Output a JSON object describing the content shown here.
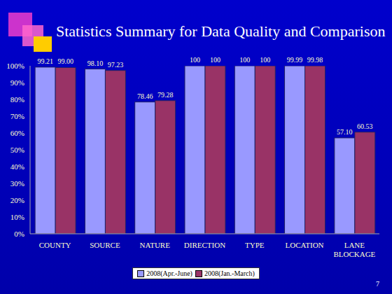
{
  "chart_data": {
    "type": "bar",
    "title": "Statistics Summary for Data Quality and Comparison",
    "categories": [
      "COUNTY",
      "SOURCE",
      "NATURE",
      "DIRECTION",
      "TYPE",
      "LOCATION",
      "LANE BLOCKAGE"
    ],
    "series": [
      {
        "name": "2008(Apr.-June)",
        "color": "#9999ff",
        "values": [
          99.21,
          98.1,
          78.46,
          100,
          100,
          99.99,
          57.1
        ],
        "value_labels": [
          "99.21",
          "98.10",
          "78.46",
          "100",
          "100",
          "99.99",
          "57.10"
        ]
      },
      {
        "name": "2008(Jan.-March)",
        "color": "#993366",
        "values": [
          99.0,
          97.23,
          79.28,
          100,
          100,
          99.98,
          60.53
        ],
        "value_labels": [
          "99.00",
          "97.23",
          "79.28",
          "100",
          "100",
          "99.98",
          "60.53"
        ]
      }
    ],
    "ylim": [
      0,
      100
    ],
    "yticks": [
      {
        "value": 0,
        "label": "0%"
      },
      {
        "value": 10,
        "label": "10%"
      },
      {
        "value": 20,
        "label": "20%"
      },
      {
        "value": 30,
        "label": "30%"
      },
      {
        "value": 40,
        "label": "40%"
      },
      {
        "value": 50,
        "label": "50%"
      },
      {
        "value": 60,
        "label": "60%"
      },
      {
        "value": 70,
        "label": "70%"
      },
      {
        "value": 80,
        "label": "80%"
      },
      {
        "value": 90,
        "label": "90%"
      },
      {
        "value": 100,
        "label": "100%"
      }
    ],
    "grid": false,
    "legend": "bottom",
    "data_labels": true
  },
  "page_number": "7"
}
